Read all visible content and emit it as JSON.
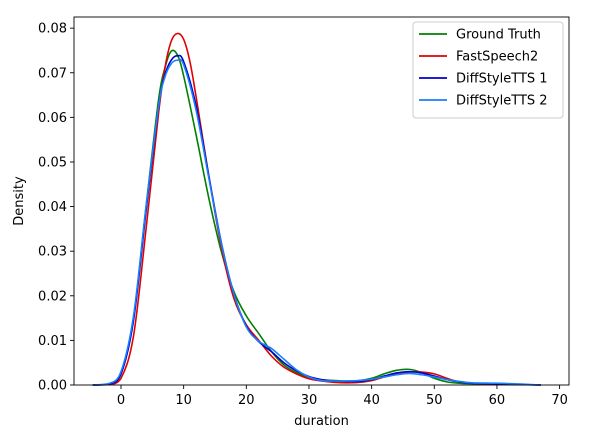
{
  "chart_data": {
    "type": "line",
    "title": "",
    "xlabel": "duration",
    "ylabel": "Density",
    "xlim": [
      -7.5,
      71.5
    ],
    "ylim": [
      0,
      0.0825
    ],
    "xticks": [
      0,
      10,
      20,
      30,
      40,
      50,
      60,
      70
    ],
    "xtick_labels": [
      "0",
      "10",
      "20",
      "30",
      "40",
      "50",
      "60",
      "70"
    ],
    "yticks": [
      0,
      0.01,
      0.02,
      0.03,
      0.04,
      0.05,
      0.06,
      0.07,
      0.08
    ],
    "ytick_labels": [
      "0.00",
      "0.01",
      "0.02",
      "0.03",
      "0.04",
      "0.05",
      "0.06",
      "0.07",
      "0.08"
    ],
    "grid": false,
    "legend_position": "top-right",
    "series": [
      {
        "name": "Ground Truth",
        "color": "#008000",
        "points": [
          [
            -4.5,
            0
          ],
          [
            -2,
            0.0002
          ],
          [
            0,
            0.0025
          ],
          [
            2,
            0.015
          ],
          [
            4,
            0.04
          ],
          [
            6,
            0.064
          ],
          [
            7,
            0.071
          ],
          [
            8,
            0.0748
          ],
          [
            9,
            0.074
          ],
          [
            10,
            0.0693
          ],
          [
            12,
            0.056
          ],
          [
            14,
            0.042
          ],
          [
            16,
            0.03
          ],
          [
            18,
            0.021
          ],
          [
            20,
            0.0155
          ],
          [
            22,
            0.0115
          ],
          [
            24,
            0.0075
          ],
          [
            26,
            0.0045
          ],
          [
            28,
            0.0028
          ],
          [
            30,
            0.0017
          ],
          [
            32,
            0.0012
          ],
          [
            34,
            0.001
          ],
          [
            36,
            0.0009
          ],
          [
            38,
            0.001
          ],
          [
            40,
            0.0015
          ],
          [
            42,
            0.0025
          ],
          [
            44,
            0.0033
          ],
          [
            46,
            0.0035
          ],
          [
            48,
            0.0028
          ],
          [
            50,
            0.0015
          ],
          [
            52,
            0.0007
          ],
          [
            54,
            0.0004
          ],
          [
            56,
            0.0003
          ],
          [
            60,
            0.0002
          ],
          [
            64,
            0.0001
          ],
          [
            67,
            0
          ]
        ]
      },
      {
        "name": "FastSpeech2",
        "color": "#e00000",
        "points": [
          [
            -4.5,
            0
          ],
          [
            -2,
            0.0001
          ],
          [
            0,
            0.0015
          ],
          [
            2,
            0.011
          ],
          [
            4,
            0.035
          ],
          [
            6,
            0.061
          ],
          [
            7,
            0.071
          ],
          [
            8,
            0.077
          ],
          [
            9,
            0.0788
          ],
          [
            10,
            0.0775
          ],
          [
            11,
            0.0725
          ],
          [
            12,
            0.0645
          ],
          [
            14,
            0.047
          ],
          [
            16,
            0.031
          ],
          [
            18,
            0.0195
          ],
          [
            20,
            0.0135
          ],
          [
            22,
            0.01
          ],
          [
            24,
            0.0065
          ],
          [
            26,
            0.004
          ],
          [
            28,
            0.0025
          ],
          [
            30,
            0.0014
          ],
          [
            32,
            0.0009
          ],
          [
            34,
            0.0006
          ],
          [
            36,
            0.0005
          ],
          [
            38,
            0.0006
          ],
          [
            40,
            0.001
          ],
          [
            42,
            0.0018
          ],
          [
            44,
            0.0026
          ],
          [
            46,
            0.0029
          ],
          [
            48,
            0.0029
          ],
          [
            50,
            0.0025
          ],
          [
            52,
            0.0015
          ],
          [
            54,
            0.0007
          ],
          [
            56,
            0.0004
          ],
          [
            60,
            0.0002
          ],
          [
            64,
            0.0001
          ],
          [
            67,
            0
          ]
        ]
      },
      {
        "name": "DiffStyleTTS 1",
        "color": "#0000cc",
        "points": [
          [
            -4.5,
            0
          ],
          [
            -2,
            0.0002
          ],
          [
            0,
            0.0025
          ],
          [
            2,
            0.0145
          ],
          [
            4,
            0.039
          ],
          [
            6,
            0.0625
          ],
          [
            7,
            0.0695
          ],
          [
            8,
            0.0728
          ],
          [
            9,
            0.0738
          ],
          [
            10,
            0.0725
          ],
          [
            12,
            0.0625
          ],
          [
            14,
            0.047
          ],
          [
            16,
            0.032
          ],
          [
            18,
            0.0205
          ],
          [
            20,
            0.0132
          ],
          [
            22,
            0.0097
          ],
          [
            24,
            0.0075
          ],
          [
            26,
            0.005
          ],
          [
            28,
            0.0032
          ],
          [
            30,
            0.0019
          ],
          [
            32,
            0.0012
          ],
          [
            34,
            0.0009
          ],
          [
            36,
            0.0008
          ],
          [
            38,
            0.0008
          ],
          [
            40,
            0.0012
          ],
          [
            42,
            0.002
          ],
          [
            44,
            0.0027
          ],
          [
            46,
            0.003
          ],
          [
            48,
            0.0027
          ],
          [
            50,
            0.002
          ],
          [
            52,
            0.0012
          ],
          [
            54,
            0.0007
          ],
          [
            56,
            0.0004
          ],
          [
            60,
            0.0003
          ],
          [
            64,
            0.0001
          ],
          [
            67,
            0
          ]
        ]
      },
      {
        "name": "DiffStyleTTS 2",
        "color": "#1a7fff",
        "points": [
          [
            -4.5,
            0
          ],
          [
            -2,
            0.0003
          ],
          [
            0,
            0.003
          ],
          [
            2,
            0.0155
          ],
          [
            4,
            0.04
          ],
          [
            6,
            0.0625
          ],
          [
            7,
            0.069
          ],
          [
            8,
            0.072
          ],
          [
            9,
            0.0728
          ],
          [
            10,
            0.0718
          ],
          [
            12,
            0.0615
          ],
          [
            14,
            0.0465
          ],
          [
            16,
            0.0318
          ],
          [
            18,
            0.0205
          ],
          [
            20,
            0.013
          ],
          [
            22,
            0.0098
          ],
          [
            24,
            0.0082
          ],
          [
            26,
            0.0058
          ],
          [
            28,
            0.0034
          ],
          [
            30,
            0.0018
          ],
          [
            32,
            0.001
          ],
          [
            34,
            0.0009
          ],
          [
            36,
            0.0009
          ],
          [
            38,
            0.001
          ],
          [
            40,
            0.0013
          ],
          [
            42,
            0.0018
          ],
          [
            44,
            0.0023
          ],
          [
            46,
            0.0026
          ],
          [
            48,
            0.0023
          ],
          [
            50,
            0.0018
          ],
          [
            52,
            0.0012
          ],
          [
            54,
            0.0008
          ],
          [
            56,
            0.0005
          ],
          [
            60,
            0.0004
          ],
          [
            64,
            0.0002
          ],
          [
            67,
            0
          ]
        ]
      }
    ]
  }
}
